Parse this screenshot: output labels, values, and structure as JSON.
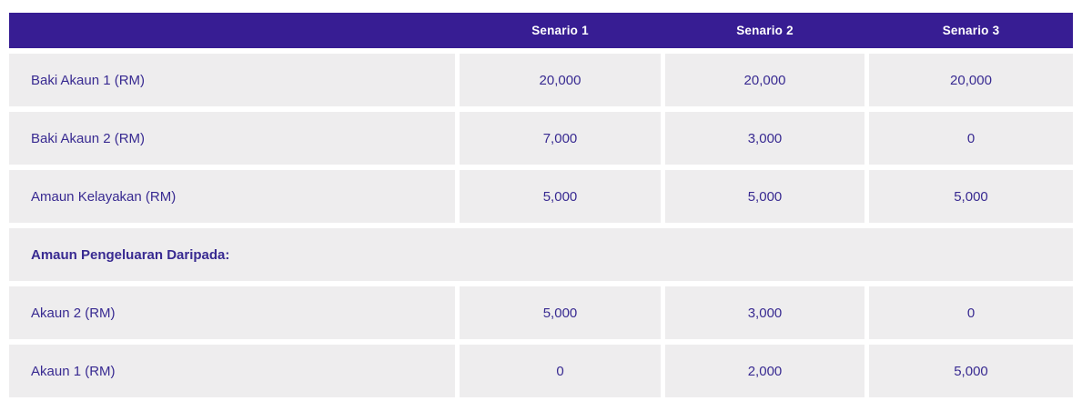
{
  "colors": {
    "header_bg": "#371D93",
    "cell_bg": "#EEEDEE",
    "cell_text": "#382A91",
    "header_text": "#FFFFFF",
    "page_bg": "#FFFFFF"
  },
  "table": {
    "columns": [
      "Senario 1",
      "Senario 2",
      "Senario 3"
    ],
    "rows": [
      {
        "label": "Baki Akaun 1 (RM)",
        "values": [
          "20,000",
          "20,000",
          "20,000"
        ]
      },
      {
        "label": "Baki Akaun 2 (RM)",
        "values": [
          "7,000",
          "3,000",
          "0"
        ]
      },
      {
        "label": "Amaun Kelayakan (RM)",
        "values": [
          "5,000",
          "5,000",
          "5,000"
        ]
      },
      {
        "label": "Amaun Pengeluaran Daripada:",
        "section": true
      },
      {
        "label": "Akaun 2 (RM)",
        "values": [
          "5,000",
          "3,000",
          "0"
        ]
      },
      {
        "label": "Akaun 1 (RM)",
        "values": [
          "0",
          "2,000",
          "5,000"
        ]
      }
    ]
  },
  "chart_data": {
    "type": "table",
    "title": "",
    "columns": [
      "",
      "Senario 1",
      "Senario 2",
      "Senario 3"
    ],
    "rows": [
      [
        "Baki Akaun 1 (RM)",
        "20,000",
        "20,000",
        "20,000"
      ],
      [
        "Baki Akaun 2 (RM)",
        "7,000",
        "3,000",
        "0"
      ],
      [
        "Amaun Kelayakan (RM)",
        "5,000",
        "5,000",
        "5,000"
      ],
      [
        "Amaun Pengeluaran Daripada:",
        "",
        "",
        ""
      ],
      [
        "Akaun 2 (RM)",
        "5,000",
        "3,000",
        "0"
      ],
      [
        "Akaun 1 (RM)",
        "0",
        "2,000",
        "5,000"
      ]
    ],
    "numeric_rows": {
      "Baki Akaun 1 (RM)": [
        20000,
        20000,
        20000
      ],
      "Baki Akaun 2 (RM)": [
        7000,
        3000,
        0
      ],
      "Amaun Kelayakan (RM)": [
        5000,
        5000,
        5000
      ],
      "Akaun 2 (RM)": [
        5000,
        3000,
        0
      ],
      "Akaun 1 (RM)": [
        0,
        2000,
        5000
      ]
    }
  }
}
